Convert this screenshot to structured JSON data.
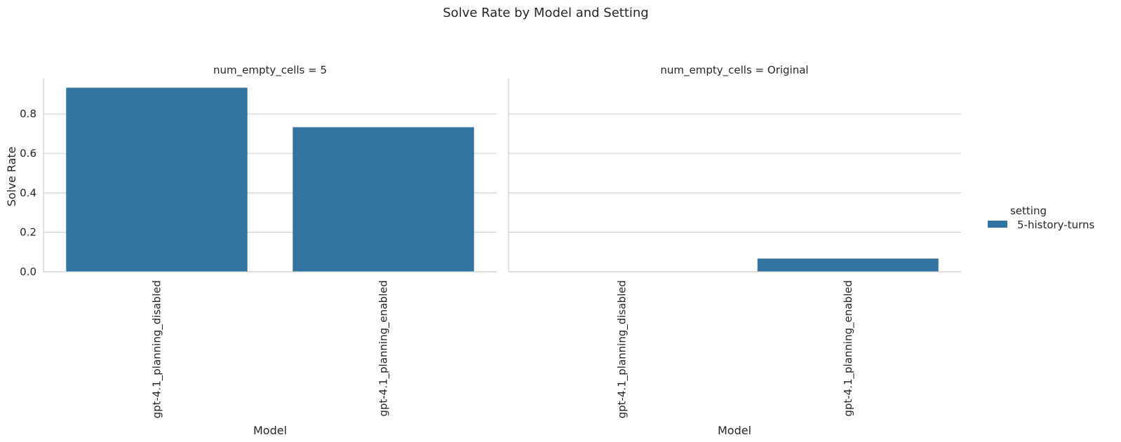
{
  "chart_data": {
    "type": "bar",
    "title": "Solve Rate by Model and Setting",
    "ylabel": "Solve Rate",
    "xlabel": "Model",
    "ylim": [
      0,
      0.98
    ],
    "yticks": [
      "0.0",
      "0.2",
      "0.4",
      "0.6",
      "0.8"
    ],
    "grid": true,
    "legend": {
      "title": "setting",
      "placement": "right",
      "entries": [
        {
          "label": "5-history-turns",
          "color": "#3274a1"
        }
      ]
    },
    "panels": [
      {
        "title": "num_empty_cells = 5",
        "categories": [
          "gpt-4.1_planning_disabled",
          "gpt-4.1_planning_enabled"
        ],
        "series": [
          {
            "name": "5-history-turns",
            "values": [
              0.933,
              0.733
            ]
          }
        ]
      },
      {
        "title": "num_empty_cells = Original",
        "categories": [
          "gpt-4.1_planning_disabled",
          "gpt-4.1_planning_enabled"
        ],
        "series": [
          {
            "name": "5-history-turns",
            "values": [
              0.0,
              0.067
            ]
          }
        ]
      }
    ]
  }
}
